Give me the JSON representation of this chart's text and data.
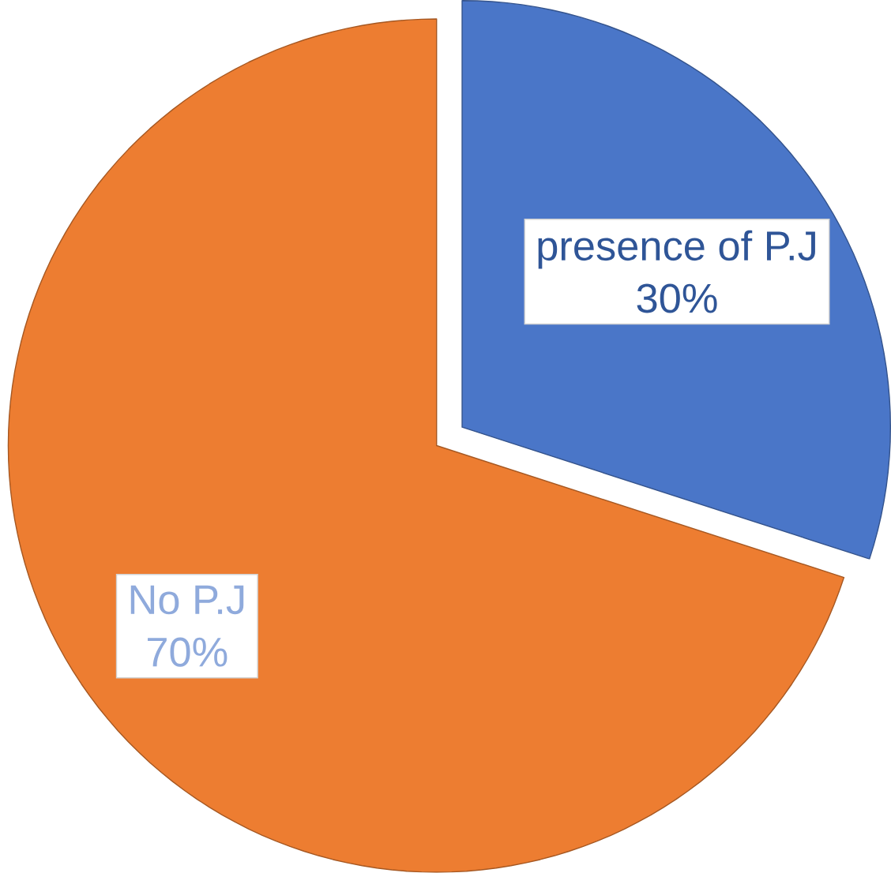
{
  "chart_data": {
    "type": "pie",
    "categories": [
      "presence of P.J",
      "No P.J"
    ],
    "values": [
      30,
      70
    ],
    "value_labels": [
      "30%",
      "70%"
    ],
    "colors": [
      "#4a76c8",
      "#ed7d31"
    ]
  }
}
